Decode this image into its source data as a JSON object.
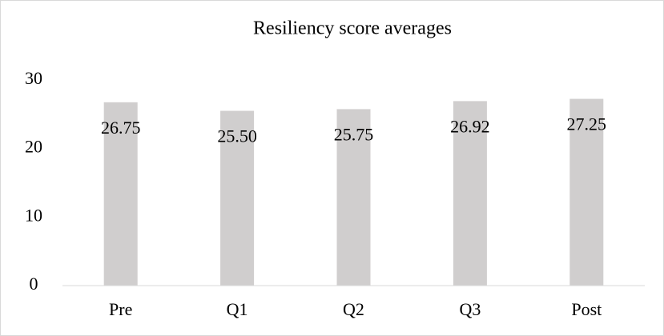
{
  "chart_data": {
    "type": "bar",
    "title": "Resiliency score averages",
    "categories": [
      "Pre",
      "Q1",
      "Q2",
      "Q3",
      "Post"
    ],
    "values": [
      26.75,
      25.5,
      25.75,
      26.92,
      27.25
    ],
    "value_labels": [
      "26.75",
      "25.50",
      "25.75",
      "26.92",
      "27.25"
    ],
    "color": "#d0cece",
    "ylim": [
      0,
      30
    ],
    "yticks": [
      0,
      10,
      20,
      30
    ],
    "grid": false
  }
}
